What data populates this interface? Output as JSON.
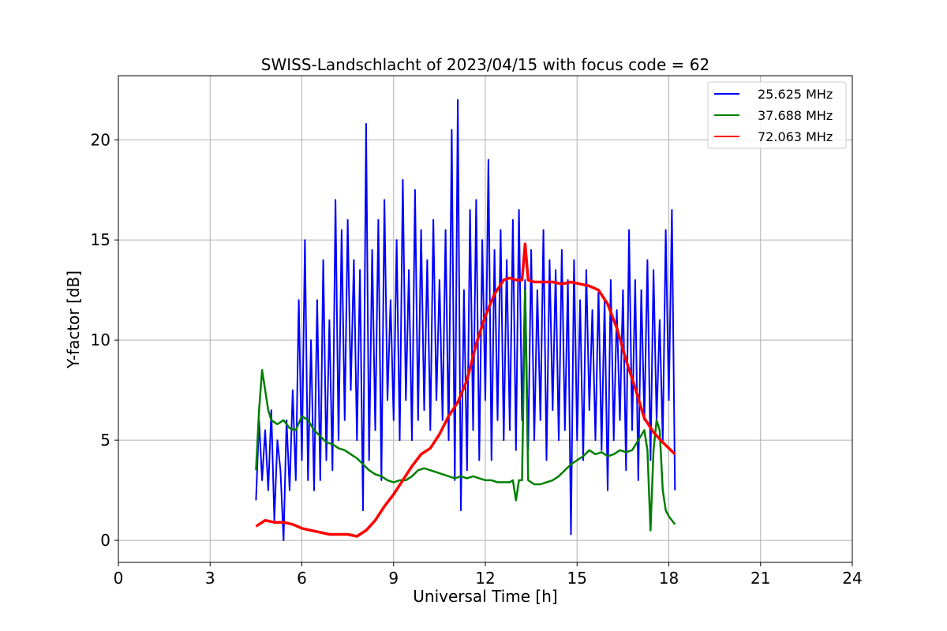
{
  "chart_data": {
    "type": "line",
    "title": "SWISS-Landschlacht of 2023/04/15 with focus code = 62",
    "xlabel": "Universal Time [h]",
    "ylabel": "Y-factor [dB]",
    "xlim": [
      0,
      24
    ],
    "ylim": [
      -1.1,
      23.2
    ],
    "xticks": [
      0,
      3,
      6,
      9,
      12,
      15,
      18,
      21,
      24
    ],
    "yticks": [
      0,
      5,
      10,
      15,
      20
    ],
    "grid": true,
    "legend_position": "top-right",
    "series": [
      {
        "name": "25.625 MHz",
        "color": "#0000ff",
        "x": [
          4.5,
          4.6,
          4.7,
          4.8,
          4.9,
          5.0,
          5.1,
          5.2,
          5.3,
          5.4,
          5.5,
          5.6,
          5.7,
          5.8,
          5.9,
          6.0,
          6.1,
          6.2,
          6.3,
          6.4,
          6.5,
          6.6,
          6.7,
          6.8,
          6.9,
          7.0,
          7.1,
          7.2,
          7.3,
          7.4,
          7.5,
          7.6,
          7.7,
          7.8,
          7.9,
          8.0,
          8.1,
          8.2,
          8.3,
          8.4,
          8.5,
          8.6,
          8.7,
          8.8,
          8.9,
          9.0,
          9.1,
          9.2,
          9.3,
          9.4,
          9.5,
          9.6,
          9.7,
          9.8,
          9.9,
          10.0,
          10.1,
          10.2,
          10.3,
          10.4,
          10.5,
          10.6,
          10.7,
          10.8,
          10.9,
          11.0,
          11.1,
          11.2,
          11.3,
          11.4,
          11.5,
          11.6,
          11.7,
          11.8,
          11.9,
          12.0,
          12.1,
          12.2,
          12.3,
          12.4,
          12.5,
          12.6,
          12.7,
          12.8,
          12.9,
          13.0,
          13.1,
          13.2,
          13.3,
          13.4,
          13.5,
          13.6,
          13.7,
          13.8,
          13.9,
          14.0,
          14.1,
          14.2,
          14.3,
          14.4,
          14.5,
          14.6,
          14.7,
          14.8,
          14.9,
          15.0,
          15.1,
          15.2,
          15.3,
          15.4,
          15.5,
          15.6,
          15.7,
          15.8,
          15.9,
          16.0,
          16.1,
          16.2,
          16.3,
          16.4,
          16.5,
          16.6,
          16.7,
          16.8,
          16.9,
          17.0,
          17.1,
          17.2,
          17.3,
          17.4,
          17.5,
          17.6,
          17.7,
          17.8,
          17.9,
          18.0,
          18.1,
          18.2
        ],
        "y": [
          2.0,
          6.0,
          3.0,
          5.5,
          2.5,
          6.5,
          1.0,
          5.0,
          3.5,
          0.0,
          6.0,
          2.5,
          7.5,
          3.0,
          12.0,
          4.0,
          15.0,
          3.0,
          10.0,
          2.5,
          12.0,
          3.0,
          14.0,
          4.0,
          11.0,
          3.5,
          17.0,
          5.0,
          15.5,
          6.0,
          16.0,
          7.5,
          14.0,
          5.0,
          13.5,
          1.5,
          20.8,
          4.0,
          14.5,
          5.5,
          16.0,
          3.0,
          17.0,
          7.0,
          12.0,
          6.0,
          15.0,
          5.0,
          18.0,
          7.0,
          13.5,
          5.0,
          17.5,
          6.0,
          15.5,
          6.5,
          14.0,
          5.5,
          16.0,
          7.0,
          13.0,
          6.0,
          15.5,
          5.0,
          20.5,
          3.0,
          22.0,
          1.5,
          12.5,
          3.5,
          16.5,
          5.5,
          17.0,
          4.0,
          15.0,
          7.0,
          19.0,
          4.0,
          14.5,
          6.0,
          15.5,
          5.0,
          14.0,
          5.5,
          16.0,
          4.5,
          16.5,
          6.0,
          13.0,
          4.5,
          14.5,
          5.0,
          12.5,
          6.0,
          15.5,
          4.0,
          14.0,
          6.5,
          13.5,
          5.0,
          14.5,
          5.5,
          13.0,
          0.3,
          14.0,
          5.0,
          12.0,
          4.0,
          13.5,
          6.5,
          11.5,
          5.0,
          12.5,
          4.5,
          12.0,
          2.5,
          13.0,
          5.0,
          11.5,
          6.0,
          12.5,
          3.5,
          15.5,
          5.5,
          13.0,
          3.0,
          12.5,
          6.0,
          14.0,
          4.0,
          13.5,
          6.0,
          11.0,
          5.0,
          15.5,
          7.0,
          16.5,
          2.5
        ]
      },
      {
        "name": "37.688 MHz",
        "color": "#008000",
        "x": [
          4.5,
          4.6,
          4.7,
          4.8,
          4.9,
          5.0,
          5.2,
          5.4,
          5.6,
          5.8,
          6.0,
          6.2,
          6.4,
          6.6,
          6.8,
          7.0,
          7.2,
          7.4,
          7.6,
          7.8,
          8.0,
          8.2,
          8.4,
          8.6,
          8.8,
          9.0,
          9.2,
          9.4,
          9.6,
          9.8,
          10.0,
          10.2,
          10.4,
          10.6,
          10.8,
          11.0,
          11.2,
          11.4,
          11.6,
          11.8,
          12.0,
          12.2,
          12.4,
          12.6,
          12.8,
          12.9,
          13.0,
          13.1,
          13.2,
          13.3,
          13.4,
          13.6,
          13.8,
          14.0,
          14.2,
          14.4,
          14.6,
          14.8,
          15.0,
          15.2,
          15.4,
          15.6,
          15.8,
          16.0,
          16.2,
          16.4,
          16.6,
          16.8,
          17.0,
          17.2,
          17.3,
          17.4,
          17.5,
          17.6,
          17.7,
          17.8,
          17.9,
          18.0,
          18.1,
          18.2
        ],
        "y": [
          3.5,
          6.5,
          8.5,
          7.5,
          6.5,
          6.0,
          5.8,
          6.0,
          5.6,
          5.5,
          6.2,
          6.0,
          5.5,
          5.2,
          4.9,
          4.8,
          4.6,
          4.5,
          4.3,
          4.1,
          3.8,
          3.5,
          3.3,
          3.2,
          3.0,
          2.9,
          3.0,
          3.0,
          3.2,
          3.5,
          3.6,
          3.5,
          3.4,
          3.3,
          3.2,
          3.1,
          3.2,
          3.1,
          3.2,
          3.1,
          3.0,
          3.0,
          2.9,
          2.9,
          2.9,
          3.0,
          2.0,
          3.0,
          3.0,
          12.5,
          3.0,
          2.8,
          2.8,
          2.9,
          3.0,
          3.2,
          3.5,
          3.8,
          4.0,
          4.2,
          4.5,
          4.3,
          4.4,
          4.2,
          4.3,
          4.5,
          4.4,
          4.5,
          5.0,
          5.5,
          4.5,
          0.5,
          4.5,
          6.0,
          5.5,
          2.5,
          1.5,
          1.2,
          1.0,
          0.8
        ]
      },
      {
        "name": "72.063 MHz",
        "color": "#ff0000",
        "x": [
          4.5,
          4.8,
          5.1,
          5.4,
          5.7,
          6.0,
          6.3,
          6.6,
          6.9,
          7.2,
          7.5,
          7.8,
          8.1,
          8.4,
          8.7,
          9.0,
          9.3,
          9.6,
          9.9,
          10.2,
          10.5,
          10.8,
          11.1,
          11.4,
          11.7,
          12.0,
          12.3,
          12.6,
          12.8,
          13.0,
          13.2,
          13.3,
          13.4,
          13.6,
          13.9,
          14.2,
          14.5,
          14.8,
          15.1,
          15.4,
          15.7,
          16.0,
          16.3,
          16.6,
          16.9,
          17.2,
          17.5,
          17.8,
          18.0,
          18.2
        ],
        "y": [
          0.7,
          1.0,
          0.9,
          0.9,
          0.8,
          0.6,
          0.5,
          0.4,
          0.3,
          0.3,
          0.3,
          0.2,
          0.5,
          1.0,
          1.7,
          2.3,
          3.0,
          3.7,
          4.3,
          4.6,
          5.3,
          6.2,
          6.9,
          8.0,
          9.8,
          11.2,
          12.3,
          13.0,
          13.1,
          13.0,
          13.0,
          14.8,
          13.0,
          12.9,
          12.9,
          12.9,
          12.8,
          12.9,
          12.8,
          12.7,
          12.5,
          11.8,
          10.6,
          9.0,
          7.6,
          6.1,
          5.4,
          4.9,
          4.6,
          4.3
        ]
      }
    ]
  }
}
